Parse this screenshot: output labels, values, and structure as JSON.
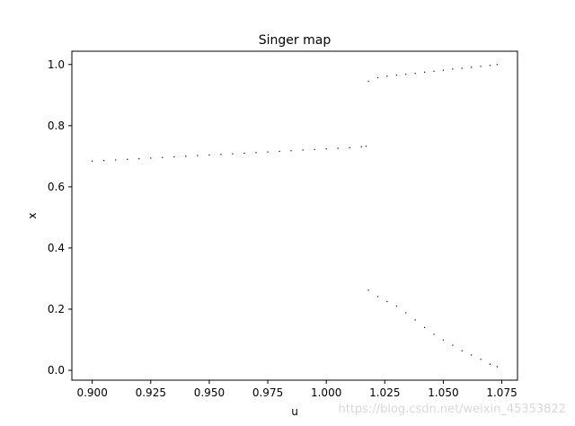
{
  "chart_data": {
    "type": "scatter",
    "title": "Singer map",
    "xlabel": "u",
    "ylabel": "x",
    "xlim": [
      0.8913,
      1.0817
    ],
    "ylim": [
      -0.0322,
      1.0434
    ],
    "xticks": [
      0.9,
      0.925,
      0.95,
      0.975,
      1.0,
      1.025,
      1.05,
      1.075
    ],
    "xtick_labels": [
      "0.900",
      "0.925",
      "0.950",
      "0.975",
      "1.000",
      "1.025",
      "1.050",
      "1.075"
    ],
    "yticks": [
      0.0,
      0.2,
      0.4,
      0.6,
      0.8,
      1.0
    ],
    "ytick_labels": [
      "0.0",
      "0.2",
      "0.4",
      "0.6",
      "0.8",
      "1.0"
    ],
    "grid": false,
    "legend": "none",
    "marker_color": "#000000",
    "series": [
      {
        "x": [
          0.9,
          0.905,
          0.91,
          0.915,
          0.92,
          0.925,
          0.93,
          0.935,
          0.94,
          0.945,
          0.95,
          0.955,
          0.96,
          0.965,
          0.97,
          0.975,
          0.98,
          0.985,
          0.99,
          0.995,
          1.0,
          1.005,
          1.01,
          1.015,
          1.017,
          1.018,
          1.018,
          1.022,
          1.022,
          1.026,
          1.026,
          1.03,
          1.03,
          1.034,
          1.034,
          1.038,
          1.038,
          1.042,
          1.042,
          1.046,
          1.046,
          1.05,
          1.05,
          1.054,
          1.054,
          1.058,
          1.058,
          1.062,
          1.062,
          1.066,
          1.066,
          1.07,
          1.07,
          1.073,
          1.073
        ],
        "y": [
          0.684,
          0.686,
          0.688,
          0.69,
          0.692,
          0.694,
          0.696,
          0.698,
          0.7,
          0.702,
          0.704,
          0.706,
          0.708,
          0.71,
          0.712,
          0.714,
          0.716,
          0.718,
          0.72,
          0.722,
          0.724,
          0.726,
          0.728,
          0.731,
          0.733,
          0.945,
          0.262,
          0.957,
          0.241,
          0.962,
          0.225,
          0.965,
          0.21,
          0.968,
          0.188,
          0.971,
          0.165,
          0.975,
          0.14,
          0.978,
          0.118,
          0.981,
          0.099,
          0.985,
          0.082,
          0.988,
          0.064,
          0.991,
          0.05,
          0.994,
          0.036,
          0.997,
          0.02,
          1.0,
          0.012
        ]
      }
    ]
  },
  "watermark": "https://blog.csdn.net/weixin_45353822"
}
